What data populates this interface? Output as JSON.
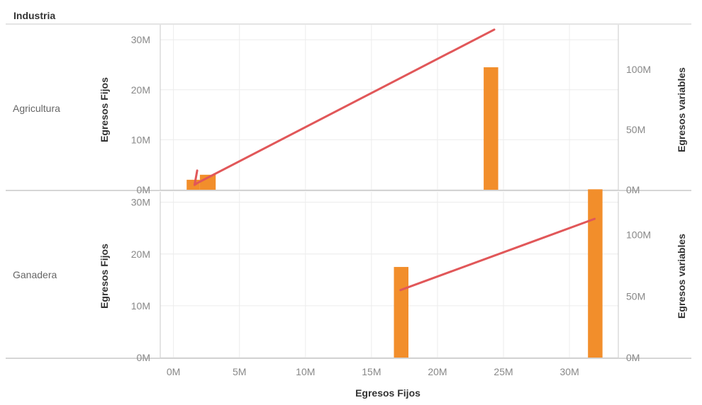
{
  "header": {
    "row_field": "Industria"
  },
  "colors": {
    "bar": "#F28E2B",
    "line": "#E15759",
    "grid": "#ececec",
    "border": "#c8c8c8"
  },
  "chart_data": {
    "type": "bar",
    "title": "",
    "xlabel": "Egresos Fijos",
    "ylabel_left": "Egresos Fijos",
    "ylabel_right": "Egresos variables",
    "x_ticks": [
      "0M",
      "5M",
      "10M",
      "15M",
      "20M",
      "25M",
      "30M"
    ],
    "xlim": [
      -1000000,
      33700000
    ],
    "grid": true,
    "panels": [
      {
        "row": "Agricultura",
        "left_ylim": [
          0,
          33000000
        ],
        "right_ylim": [
          0,
          137000000
        ],
        "left_ticks": [
          "0M",
          "10M",
          "20M",
          "30M"
        ],
        "right_ticks": [
          "0M",
          "50M",
          "100M"
        ],
        "bars": [
          {
            "x_from": 1000000,
            "x_to": 2000000,
            "value": 2000000
          },
          {
            "x_from": 2000000,
            "x_to": 3200000,
            "value": 3000000
          },
          {
            "x_from": 23500000,
            "x_to": 24600000,
            "value": 24500000
          }
        ],
        "line": [
          {
            "x": 1800000,
            "y": 16000000
          },
          {
            "x": 1600000,
            "y": 4000000
          },
          {
            "x": 1800000,
            "y": 5500000
          },
          {
            "x": 24300000,
            "y": 133000000
          }
        ]
      },
      {
        "row": "Ganadera",
        "left_ylim": [
          0,
          32000000
        ],
        "right_ylim": [
          0,
          135000000
        ],
        "left_ticks": [
          "0M",
          "10M",
          "20M",
          "30M"
        ],
        "right_ticks": [
          "0M",
          "50M",
          "100M"
        ],
        "bars": [
          {
            "x_from": 16700000,
            "x_to": 17800000,
            "value": 17500000
          },
          {
            "x_from": 31400000,
            "x_to": 32500000,
            "value": 32500000
          }
        ],
        "line": [
          {
            "x": 17200000,
            "y": 55000000
          },
          {
            "x": 31900000,
            "y": 113000000
          }
        ]
      }
    ]
  }
}
